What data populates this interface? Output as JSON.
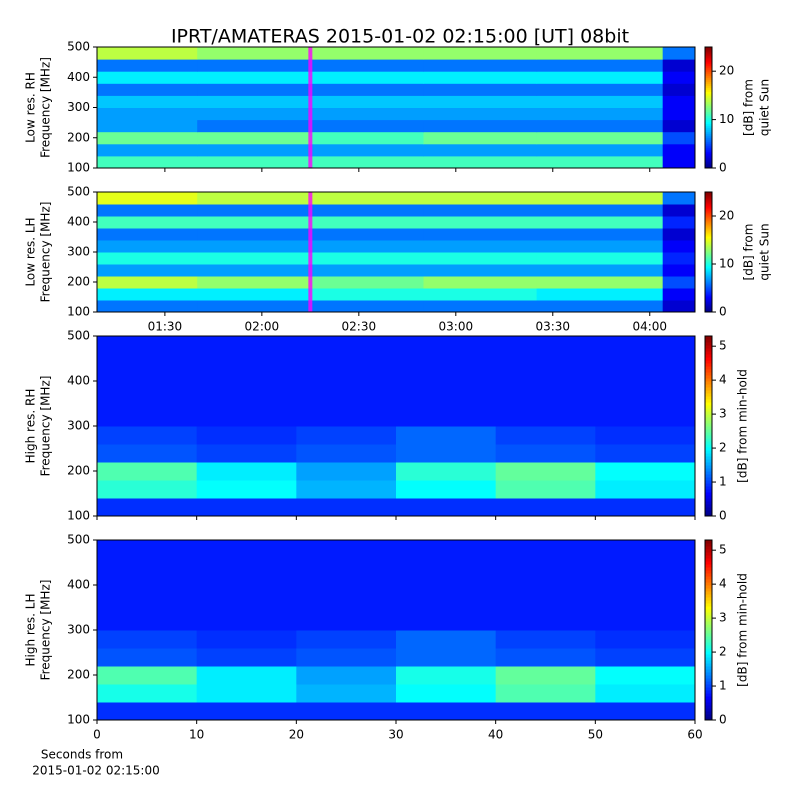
{
  "title": "IPRT/AMATERAS 2015-01-02 02:15:00 [UT]   08bit",
  "chart_data": [
    {
      "type": "heatmap",
      "colormap": "jet",
      "ylabel": [
        "Low res. RH",
        "Frequency [MHz]"
      ],
      "colorbar_label": [
        "[dB] from",
        "quiet Sun"
      ],
      "xlim": [
        69,
        254
      ],
      "ylim": [
        100,
        500
      ],
      "clim": [
        0,
        25
      ],
      "xticks": [
        90,
        120,
        150,
        180,
        210,
        240
      ],
      "xtick_labels": false,
      "yticks": [
        100,
        200,
        300,
        400,
        500
      ],
      "cticks": [
        0,
        10,
        20
      ],
      "marker_x": 135,
      "marker_color": "#ff00ff",
      "x_edges": [
        69,
        100,
        135,
        170,
        205,
        244,
        254
      ],
      "y_edges": [
        100,
        140,
        180,
        220,
        260,
        300,
        340,
        380,
        420,
        460,
        500
      ],
      "values": [
        [
          11,
          11,
          11,
          11,
          11,
          3
        ],
        [
          7,
          7,
          7,
          7,
          7,
          3
        ],
        [
          12,
          12,
          11,
          12,
          12,
          5
        ],
        [
          7,
          6,
          6,
          6,
          6,
          2
        ],
        [
          7,
          7,
          7,
          7,
          7,
          3
        ],
        [
          8,
          8,
          8,
          8,
          8,
          3
        ],
        [
          6,
          6,
          6,
          6,
          6,
          2
        ],
        [
          9,
          9,
          9,
          9,
          9,
          3
        ],
        [
          6,
          6,
          6,
          6,
          6,
          2
        ],
        [
          14,
          13,
          13,
          13,
          13,
          6
        ]
      ]
    },
    {
      "type": "heatmap",
      "colormap": "jet",
      "ylabel": [
        "Low res. LH",
        "Frequency [MHz]"
      ],
      "colorbar_label": [
        "[dB] from",
        "quiet Sun"
      ],
      "xlim": [
        69,
        254
      ],
      "ylim": [
        100,
        500
      ],
      "clim": [
        0,
        25
      ],
      "xticks": [
        {
          "value": 90,
          "label": "01:30"
        },
        {
          "value": 120,
          "label": "02:00"
        },
        {
          "value": 150,
          "label": "02:30"
        },
        {
          "value": 180,
          "label": "03:00"
        },
        {
          "value": 210,
          "label": "03:30"
        },
        {
          "value": 240,
          "label": "04:00"
        }
      ],
      "xtick_labels": true,
      "yticks": [
        100,
        200,
        300,
        400,
        500
      ],
      "cticks": [
        0,
        10,
        20
      ],
      "marker_x": 135,
      "marker_color": "#ff00ff",
      "x_edges": [
        69,
        100,
        135,
        170,
        205,
        244,
        254
      ],
      "y_edges": [
        100,
        140,
        180,
        220,
        260,
        300,
        340,
        380,
        420,
        460,
        500
      ],
      "values": [
        [
          6,
          6,
          6,
          6,
          6,
          2
        ],
        [
          9,
          9,
          10,
          10,
          9,
          3
        ],
        [
          14,
          13,
          12,
          13,
          13,
          5
        ],
        [
          7,
          7,
          7,
          7,
          7,
          3
        ],
        [
          10,
          10,
          10,
          10,
          10,
          4
        ],
        [
          7,
          7,
          7,
          7,
          7,
          3
        ],
        [
          6,
          6,
          6,
          6,
          6,
          2
        ],
        [
          11,
          11,
          11,
          11,
          11,
          4
        ],
        [
          6,
          6,
          6,
          6,
          6,
          2
        ],
        [
          15,
          14,
          14,
          14,
          14,
          6
        ]
      ]
    },
    {
      "type": "heatmap",
      "colormap": "jet",
      "ylabel": [
        "High res. RH",
        "Frequency [MHz]"
      ],
      "colorbar_label": [
        "[dB] from min-hold"
      ],
      "xlim": [
        0,
        60
      ],
      "ylim": [
        100,
        500
      ],
      "clim": [
        0,
        5.3
      ],
      "xticks": [
        0,
        10,
        20,
        30,
        40,
        50,
        60
      ],
      "xtick_labels": false,
      "yticks": [
        100,
        200,
        300,
        400,
        500
      ],
      "cticks": [
        0,
        1,
        2,
        3,
        4,
        5
      ],
      "x_edges": [
        0,
        10,
        20,
        30,
        40,
        50,
        60
      ],
      "y_edges": [
        100,
        140,
        180,
        220,
        260,
        300,
        340,
        380,
        420,
        460,
        500
      ],
      "values": [
        [
          0.9,
          0.9,
          0.9,
          0.9,
          0.9,
          0.9
        ],
        [
          2.2,
          2,
          1.6,
          2,
          2.4,
          1.9
        ],
        [
          2.4,
          1.9,
          1.5,
          2.2,
          2.5,
          2
        ],
        [
          1.1,
          1,
          1.1,
          1.2,
          1.1,
          1
        ],
        [
          1,
          0.9,
          1,
          1.2,
          1,
          0.9
        ],
        [
          0.8,
          0.8,
          0.8,
          0.8,
          0.8,
          0.8
        ],
        [
          0.8,
          0.8,
          0.8,
          0.8,
          0.8,
          0.8
        ],
        [
          0.8,
          0.8,
          0.8,
          0.8,
          0.8,
          0.8
        ],
        [
          0.8,
          0.8,
          0.8,
          0.8,
          0.8,
          0.8
        ],
        [
          0.8,
          0.8,
          0.8,
          0.8,
          0.8,
          0.8
        ]
      ]
    },
    {
      "type": "heatmap",
      "colormap": "jet",
      "ylabel": [
        "High res. LH",
        "Frequency [MHz]"
      ],
      "colorbar_label": [
        "[dB] from min-hold"
      ],
      "xlim": [
        0,
        60
      ],
      "ylim": [
        100,
        500
      ],
      "clim": [
        0,
        5.3
      ],
      "xticks": [
        0,
        10,
        20,
        30,
        40,
        50,
        60
      ],
      "xtick_labels": true,
      "yticks": [
        100,
        200,
        300,
        400,
        500
      ],
      "cticks": [
        0,
        1,
        2,
        3,
        4,
        5
      ],
      "xlabel": [
        "Seconds from",
        "2015-01-02 02:15:00"
      ],
      "x_edges": [
        0,
        10,
        20,
        30,
        40,
        50,
        60
      ],
      "y_edges": [
        100,
        140,
        180,
        220,
        260,
        300,
        340,
        380,
        420,
        460,
        500
      ],
      "values": [
        [
          0.9,
          0.9,
          0.9,
          0.9,
          0.9,
          0.9
        ],
        [
          2.1,
          1.9,
          1.6,
          2,
          2.4,
          1.9
        ],
        [
          2.4,
          1.9,
          1.5,
          2.1,
          2.5,
          2
        ],
        [
          1.1,
          1,
          1.1,
          1.2,
          1.1,
          1
        ],
        [
          1,
          0.9,
          1,
          1.2,
          1,
          0.9
        ],
        [
          0.8,
          0.8,
          0.8,
          0.8,
          0.8,
          0.8
        ],
        [
          0.8,
          0.8,
          0.8,
          0.8,
          0.8,
          0.8
        ],
        [
          0.8,
          0.8,
          0.8,
          0.8,
          0.8,
          0.8
        ],
        [
          0.8,
          0.8,
          0.8,
          0.8,
          0.8,
          0.8
        ],
        [
          0.8,
          0.8,
          0.8,
          0.8,
          0.8,
          0.8
        ]
      ]
    }
  ]
}
